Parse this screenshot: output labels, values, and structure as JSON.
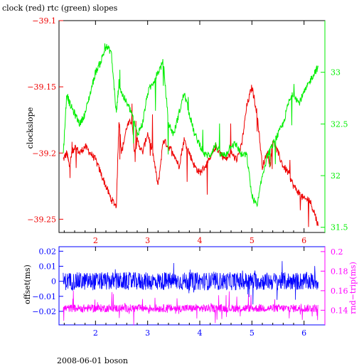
{
  "page": {
    "title": "clock (red) rtc (green) slopes",
    "footer": "2008-06-01 boson"
  },
  "colors": {
    "red": "#ee0000",
    "green": "#00ee00",
    "blue": "#0000ff",
    "magenta": "#ff00ff",
    "axis": "#000000"
  },
  "chart_data": [
    {
      "type": "line",
      "title": "clock (red) rtc (green) slopes",
      "xlabel": "",
      "xlim": [
        1.3,
        6.4
      ],
      "x_ticks": [
        2,
        3,
        4,
        5,
        6
      ],
      "left_axis": {
        "label": "clockslope",
        "ylim": [
          -39.26,
          -39.1
        ],
        "ticks": [
          -39.1,
          -39.15,
          -39.2,
          -39.25
        ],
        "tick_labels": [
          "−39.1",
          "−39.15",
          "−39.2",
          "−39.25"
        ],
        "color": "#ee0000"
      },
      "right_axis": {
        "label": "",
        "ylim": [
          31.45,
          33.5
        ],
        "ticks": [
          31.5,
          32,
          32.5,
          33
        ],
        "tick_labels": [
          "31.5",
          "32",
          "32.5",
          "33"
        ],
        "color": "#00ee00"
      },
      "series": [
        {
          "axis": "left",
          "color": "#ee0000",
          "x": [
            1.38,
            1.45,
            1.5,
            1.55,
            1.6,
            1.7,
            1.8,
            1.9,
            2.0,
            2.1,
            2.2,
            2.3,
            2.4,
            2.45,
            2.5,
            2.6,
            2.7,
            2.75,
            2.8,
            2.9,
            3.0,
            3.1,
            3.2,
            3.3,
            3.4,
            3.5,
            3.6,
            3.7,
            3.8,
            3.9,
            4.0,
            4.1,
            4.2,
            4.3,
            4.4,
            4.5,
            4.6,
            4.7,
            4.8,
            4.9,
            5.0,
            5.1,
            5.2,
            5.3,
            5.35,
            5.4,
            5.5,
            5.6,
            5.7,
            5.8,
            5.9,
            6.0,
            6.1,
            6.2,
            6.27
          ],
          "y": [
            -39.205,
            -39.2,
            -39.21,
            -39.2,
            -39.195,
            -39.2,
            -39.195,
            -39.2,
            -39.205,
            -39.215,
            -39.225,
            -39.235,
            -39.24,
            -39.175,
            -39.2,
            -39.18,
            -39.175,
            -39.2,
            -39.19,
            -39.2,
            -39.185,
            -39.2,
            -39.225,
            -39.19,
            -39.195,
            -39.2,
            -39.21,
            -39.19,
            -39.2,
            -39.21,
            -39.215,
            -39.21,
            -39.205,
            -39.195,
            -39.2,
            -39.205,
            -39.2,
            -39.205,
            -39.195,
            -39.165,
            -39.15,
            -39.17,
            -39.21,
            -39.2,
            -39.21,
            -39.19,
            -39.2,
            -39.21,
            -39.215,
            -39.225,
            -39.23,
            -39.235,
            -39.235,
            -39.245,
            -39.255
          ]
        },
        {
          "axis": "right",
          "color": "#00ee00",
          "x": [
            1.38,
            1.45,
            1.5,
            1.6,
            1.7,
            1.8,
            1.9,
            2.0,
            2.1,
            2.2,
            2.3,
            2.4,
            2.45,
            2.5,
            2.6,
            2.7,
            2.8,
            2.9,
            3.0,
            3.1,
            3.2,
            3.3,
            3.4,
            3.5,
            3.6,
            3.7,
            3.8,
            3.9,
            4.0,
            4.1,
            4.2,
            4.3,
            4.4,
            4.5,
            4.6,
            4.7,
            4.8,
            4.9,
            5.0,
            5.1,
            5.2,
            5.3,
            5.4,
            5.5,
            5.6,
            5.7,
            5.8,
            5.9,
            6.0,
            6.1,
            6.2,
            6.27
          ],
          "y": [
            32.2,
            32.8,
            32.7,
            32.6,
            32.5,
            32.6,
            32.8,
            33.0,
            33.1,
            33.25,
            33.2,
            32.6,
            32.9,
            32.8,
            32.7,
            32.6,
            32.4,
            32.5,
            32.8,
            32.9,
            33.0,
            33.1,
            32.5,
            32.4,
            32.6,
            32.8,
            32.6,
            32.4,
            32.3,
            32.2,
            32.2,
            32.3,
            32.2,
            32.2,
            32.3,
            32.3,
            32.2,
            32.2,
            31.8,
            31.7,
            32.0,
            32.2,
            32.3,
            32.4,
            32.5,
            32.7,
            32.8,
            32.7,
            32.8,
            32.9,
            33.0,
            33.05
          ]
        }
      ]
    },
    {
      "type": "line",
      "title": "",
      "xlim": [
        1.3,
        6.4
      ],
      "x_ticks": [
        2,
        3,
        4,
        5,
        6
      ],
      "left_axis": {
        "label": "offset(ms)",
        "ylim": [
          -0.029,
          0.023
        ],
        "ticks": [
          0.02,
          0.01,
          0,
          -0.01,
          -0.02
        ],
        "tick_labels": [
          "0.02",
          "0.01",
          "0",
          "−0.01",
          "−0.02"
        ],
        "color": "#0000ff"
      },
      "right_axis": {
        "label": "rnd−trip(ms)",
        "ylim": [
          0.125,
          0.205
        ],
        "ticks": [
          0.2,
          0.18,
          0.16,
          0.14
        ],
        "tick_labels": [
          "0.2",
          "0.18",
          "0.16",
          "0.14"
        ],
        "color": "#ff00ff"
      },
      "series": [
        {
          "axis": "left",
          "color": "#0000ff",
          "description_of_values": "noisy trace around 0",
          "center": 0.0,
          "spread": 0.006,
          "spike": 0.012,
          "x_start": 1.38,
          "x_end": 6.27
        },
        {
          "axis": "right",
          "color": "#ff00ff",
          "center": 0.142,
          "spread": 0.004,
          "spike": 0.015,
          "x_start": 1.38,
          "x_end": 6.27
        }
      ]
    }
  ]
}
